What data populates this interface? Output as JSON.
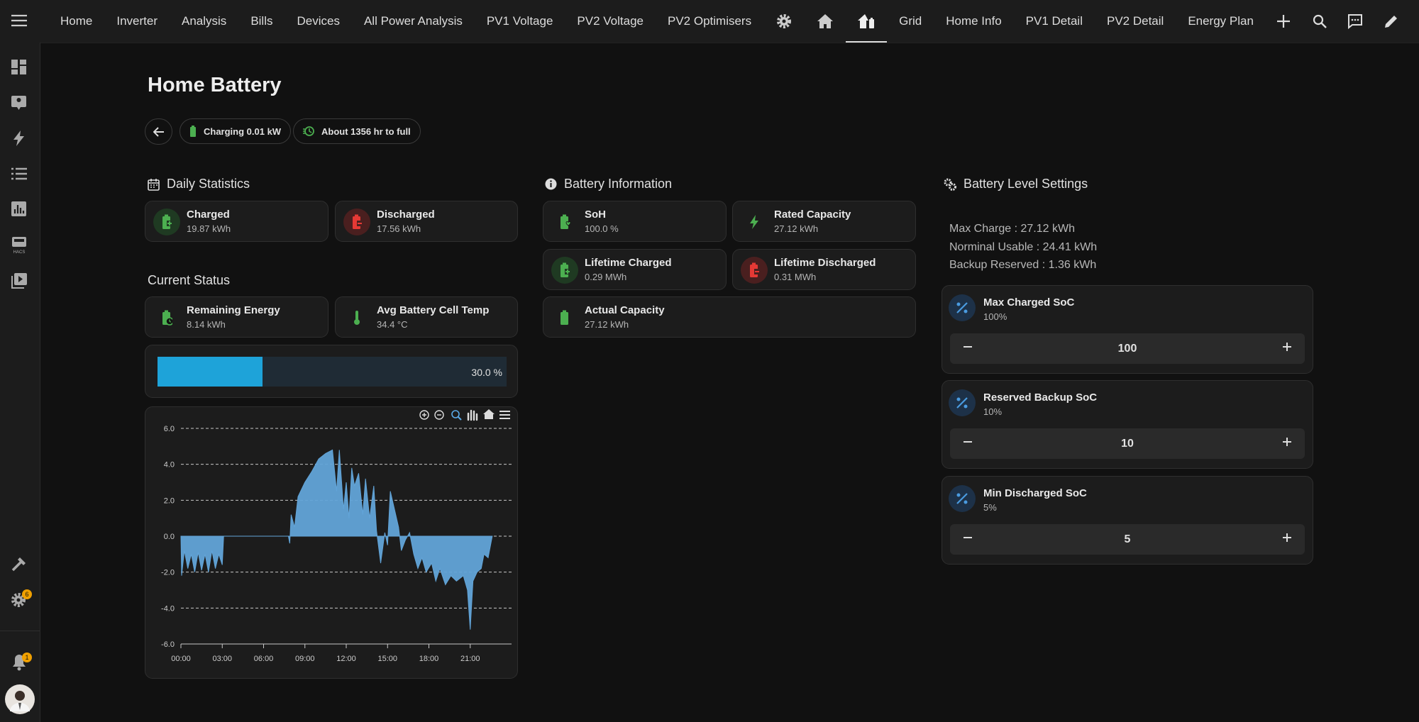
{
  "nav": {
    "tabs_left": [
      "Home",
      "Inverter",
      "Analysis",
      "Bills",
      "Devices",
      "All Power Analysis",
      "PV1 Voltage",
      "PV2 Voltage",
      "PV2 Optimisers"
    ],
    "tabs_right": [
      "Grid",
      "Home Info",
      "PV1 Detail",
      "PV2 Detail",
      "Energy Plan"
    ]
  },
  "sidebar": {
    "badges": {
      "settings": "6",
      "notifications": "1"
    }
  },
  "header": {
    "title": "Home Battery",
    "chips": [
      "Charging 0.01 kW",
      "About 1356 hr to full"
    ]
  },
  "daily_statistics": {
    "title": "Daily Statistics",
    "cards": [
      {
        "label": "Charged",
        "value": "19.87 kWh"
      },
      {
        "label": "Discharged",
        "value": "17.56 kWh"
      }
    ]
  },
  "current_status": {
    "title": "Current Status",
    "cards": [
      {
        "label": "Remaining Energy",
        "value": "8.14 kWh"
      },
      {
        "label": "Avg Battery Cell Temp",
        "value": "34.4 °C"
      }
    ],
    "level": {
      "value": 30,
      "label": "30.0 %"
    }
  },
  "battery_information": {
    "title": "Battery Information",
    "cards": [
      {
        "label": "SoH",
        "value": "100.0 %"
      },
      {
        "label": "Rated Capacity",
        "value": "27.12 kWh"
      },
      {
        "label": "Lifetime Charged",
        "value": "0.29 MWh"
      },
      {
        "label": "Lifetime Discharged",
        "value": "0.31 MWh"
      },
      {
        "label": "Actual Capacity",
        "value": "27.12 kWh"
      }
    ]
  },
  "battery_level_settings": {
    "title": "Battery Level Settings",
    "lines": [
      "Max Charge : 27.12 kWh",
      "Norminal Usable : 24.41 kWh",
      "Backup Reserved : 1.36 kWh"
    ],
    "controls": [
      {
        "label": "Max Charged SoC",
        "subtitle": "100%",
        "value": 100
      },
      {
        "label": "Reserved Backup SoC",
        "subtitle": "10%",
        "value": 10
      },
      {
        "label": "Min Discharged SoC",
        "subtitle": "5%",
        "value": 5
      }
    ]
  },
  "chart_data": {
    "type": "area",
    "color": "#62a4d8",
    "x": [
      0,
      0.05,
      0.25,
      0.5,
      0.75,
      1,
      1.25,
      1.5,
      1.75,
      2,
      2.25,
      2.5,
      2.75,
      3,
      3.1,
      5,
      7,
      7.8,
      7.9,
      8.0,
      8.25,
      8.5,
      9,
      9.5,
      10,
      10.5,
      11,
      11.3,
      11.5,
      11.8,
      12,
      12.2,
      12.4,
      12.6,
      12.9,
      13.2,
      13.4,
      13.7,
      14.0,
      14.2,
      14.5,
      14.8,
      15.0,
      15.2,
      15.5,
      15.8,
      16.0,
      16.3,
      16.6,
      16.9,
      17.2,
      17.5,
      17.8,
      18.2,
      18.5,
      18.8,
      19.2,
      19.6,
      20.0,
      20.5,
      20.8,
      21.0,
      21.2,
      21.5,
      21.8,
      22.0,
      22.3,
      22.6
    ],
    "values": [
      0,
      -2.2,
      -0.8,
      -1.8,
      -1.0,
      -2.0,
      -0.9,
      -1.9,
      -1.0,
      -2.0,
      -0.8,
      -1.8,
      -1.0,
      -1.6,
      0,
      0,
      0,
      0,
      -0.4,
      1.2,
      0.5,
      2.2,
      3.0,
      3.6,
      4.3,
      4.6,
      4.8,
      2.5,
      4.8,
      1.5,
      3.0,
      1.0,
      3.8,
      2.8,
      3.5,
      1.2,
      3.2,
      1.0,
      2.8,
      0.3,
      -1.5,
      0.2,
      -0.5,
      2.5,
      1.5,
      0.5,
      -0.8,
      -0.2,
      0.2,
      -1.0,
      -1.8,
      -1.2,
      -2.0,
      -1.5,
      -2.5,
      -1.8,
      -2.7,
      -2.2,
      -2.5,
      -2.2,
      -3.0,
      -5.2,
      -2.5,
      -2.0,
      -1.8,
      -1.0,
      -1.2,
      0
    ],
    "xlim": [
      0,
      24
    ],
    "xticks": [
      {
        "value": 0,
        "label": "00:00"
      },
      {
        "value": 3,
        "label": "03:00"
      },
      {
        "value": 6,
        "label": "06:00"
      },
      {
        "value": 9,
        "label": "09:00"
      },
      {
        "value": 12,
        "label": "12:00"
      },
      {
        "value": 15,
        "label": "15:00"
      },
      {
        "value": 18,
        "label": "18:00"
      },
      {
        "value": 21,
        "label": "21:00"
      }
    ],
    "ylim": [
      -6,
      6
    ],
    "yticks": [
      {
        "value": -6,
        "label": "-6.0"
      },
      {
        "value": -4,
        "label": "-4.0"
      },
      {
        "value": -2,
        "label": "-2.0"
      },
      {
        "value": 0,
        "label": "0.0"
      },
      {
        "value": 2,
        "label": "2.0"
      },
      {
        "value": 4,
        "label": "4.0"
      },
      {
        "value": 6,
        "label": "6.0"
      }
    ],
    "grid": true
  }
}
